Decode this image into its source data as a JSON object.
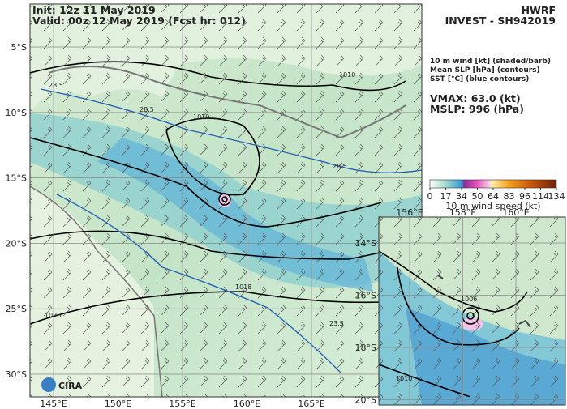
{
  "header": {
    "init": "Init:  12z 11 May 2019",
    "valid": "Valid: 00z 12 May 2019 (Fcst hr: 012)",
    "model": "HWRF",
    "storm": "INVEST - SH942019"
  },
  "legend": {
    "lines": [
      "10 m wind [kt] (shaded/barb)",
      "Mean SLP [hPa] (contours)",
      "SST [°C] (blue contours)"
    ],
    "vmax": "VMAX:  63.0 (kt)",
    "mslp": "MSLP:  996 (hPa)"
  },
  "colorbar": {
    "ticks": [
      "0",
      "17",
      "34",
      "50",
      "64",
      "83",
      "96",
      "114",
      "134"
    ],
    "label": "10 m wind speed (kt)"
  },
  "main_map": {
    "lat_labels": [
      "5°S",
      "10°S",
      "15°S",
      "20°S",
      "25°S",
      "30°S"
    ],
    "lon_labels": [
      "145°E",
      "150°E",
      "155°E",
      "160°E",
      "165°E"
    ],
    "contour_labels": [
      "1010",
      "1010",
      "1018",
      "1026",
      "28.5",
      "28.5",
      "28.5",
      "23.5"
    ],
    "logo": "CIRA"
  },
  "inset": {
    "lat_labels": [
      "14°S",
      "16°S",
      "18°S",
      "20°S"
    ],
    "lon_labels": [
      "156°E",
      "158°E",
      "160°E"
    ],
    "contour_labels": [
      "1006",
      "1010"
    ]
  }
}
